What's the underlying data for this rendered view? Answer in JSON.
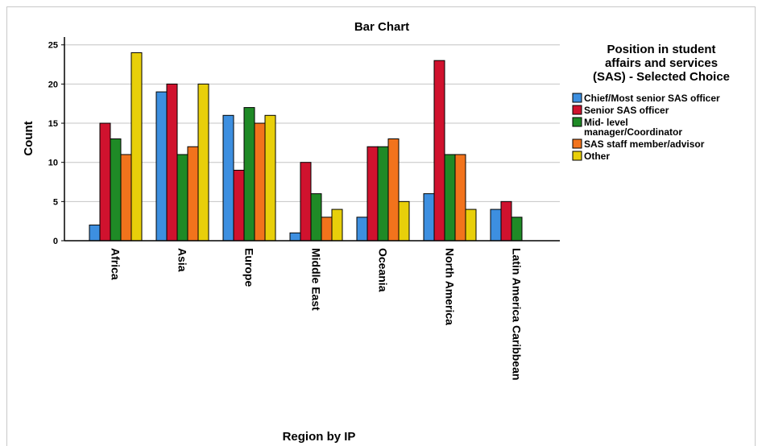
{
  "chart_data": {
    "type": "bar",
    "title": "Bar Chart",
    "xlabel": "Region by IP",
    "ylabel": "Count",
    "ylim": [
      0,
      26
    ],
    "yticks": [
      0,
      5,
      10,
      15,
      20,
      25
    ],
    "grid": true,
    "legend_position": "right",
    "legend_title_lines": [
      "Position in student",
      "affairs and services",
      "(SAS) - Selected Choice"
    ],
    "categories": [
      "Africa",
      "Asia",
      "Europe",
      "Middle East",
      "Oceania",
      "North America",
      "Latin America Caribbean"
    ],
    "series": [
      {
        "name": "Chief/Most senior SAS officer",
        "label_lines": [
          "Chief/Most senior SAS officer"
        ],
        "color": "#3d8fe0",
        "values": [
          2,
          19,
          16,
          1,
          3,
          6,
          4
        ]
      },
      {
        "name": "Senior SAS officer",
        "label_lines": [
          "Senior SAS officer"
        ],
        "color": "#d0122e",
        "values": [
          15,
          20,
          9,
          10,
          12,
          23,
          5
        ]
      },
      {
        "name": "Mid- level manager/Coordinator",
        "label_lines": [
          "Mid- level",
          "manager/Coordinator"
        ],
        "color": "#1f8a26",
        "values": [
          13,
          11,
          17,
          6,
          12,
          11,
          3
        ]
      },
      {
        "name": "SAS staff member/advisor",
        "label_lines": [
          "SAS staff member/advisor"
        ],
        "color": "#f2731c",
        "values": [
          11,
          12,
          15,
          3,
          13,
          11,
          0
        ]
      },
      {
        "name": "Other",
        "label_lines": [
          "Other"
        ],
        "color": "#e8cf0a",
        "values": [
          24,
          20,
          16,
          4,
          5,
          4,
          0
        ]
      }
    ]
  }
}
